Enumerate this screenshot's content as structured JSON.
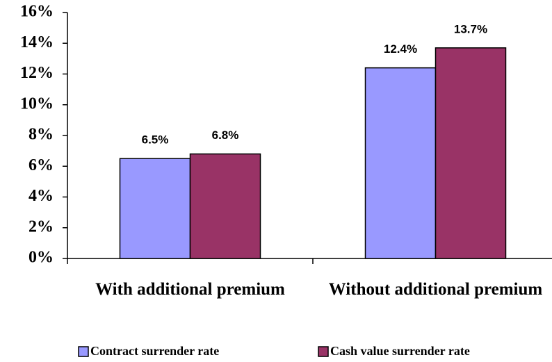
{
  "chart_data": {
    "type": "bar",
    "categories": [
      "With additional premium",
      "Without additional premium"
    ],
    "series": [
      {
        "name": "Contract surrender rate",
        "color": "#9999ff",
        "values": [
          6.5,
          12.4
        ],
        "value_labels": [
          "6.5%",
          "12.4%"
        ]
      },
      {
        "name": "Cash value surrender rate",
        "color": "#993366",
        "values": [
          6.8,
          13.7
        ],
        "value_labels": [
          "6.8%",
          "13.7%"
        ]
      }
    ],
    "ylim": [
      0,
      16
    ],
    "yticks": [
      {
        "value": 0,
        "label": "0%"
      },
      {
        "value": 2,
        "label": "2%"
      },
      {
        "value": 4,
        "label": "4%"
      },
      {
        "value": 6,
        "label": "6%"
      },
      {
        "value": 8,
        "label": "8%"
      },
      {
        "value": 10,
        "label": "10%"
      },
      {
        "value": 12,
        "label": "12%"
      },
      {
        "value": 14,
        "label": "14%"
      },
      {
        "value": 16,
        "label": "16%"
      }
    ],
    "grid": false,
    "legend": "bottom"
  }
}
